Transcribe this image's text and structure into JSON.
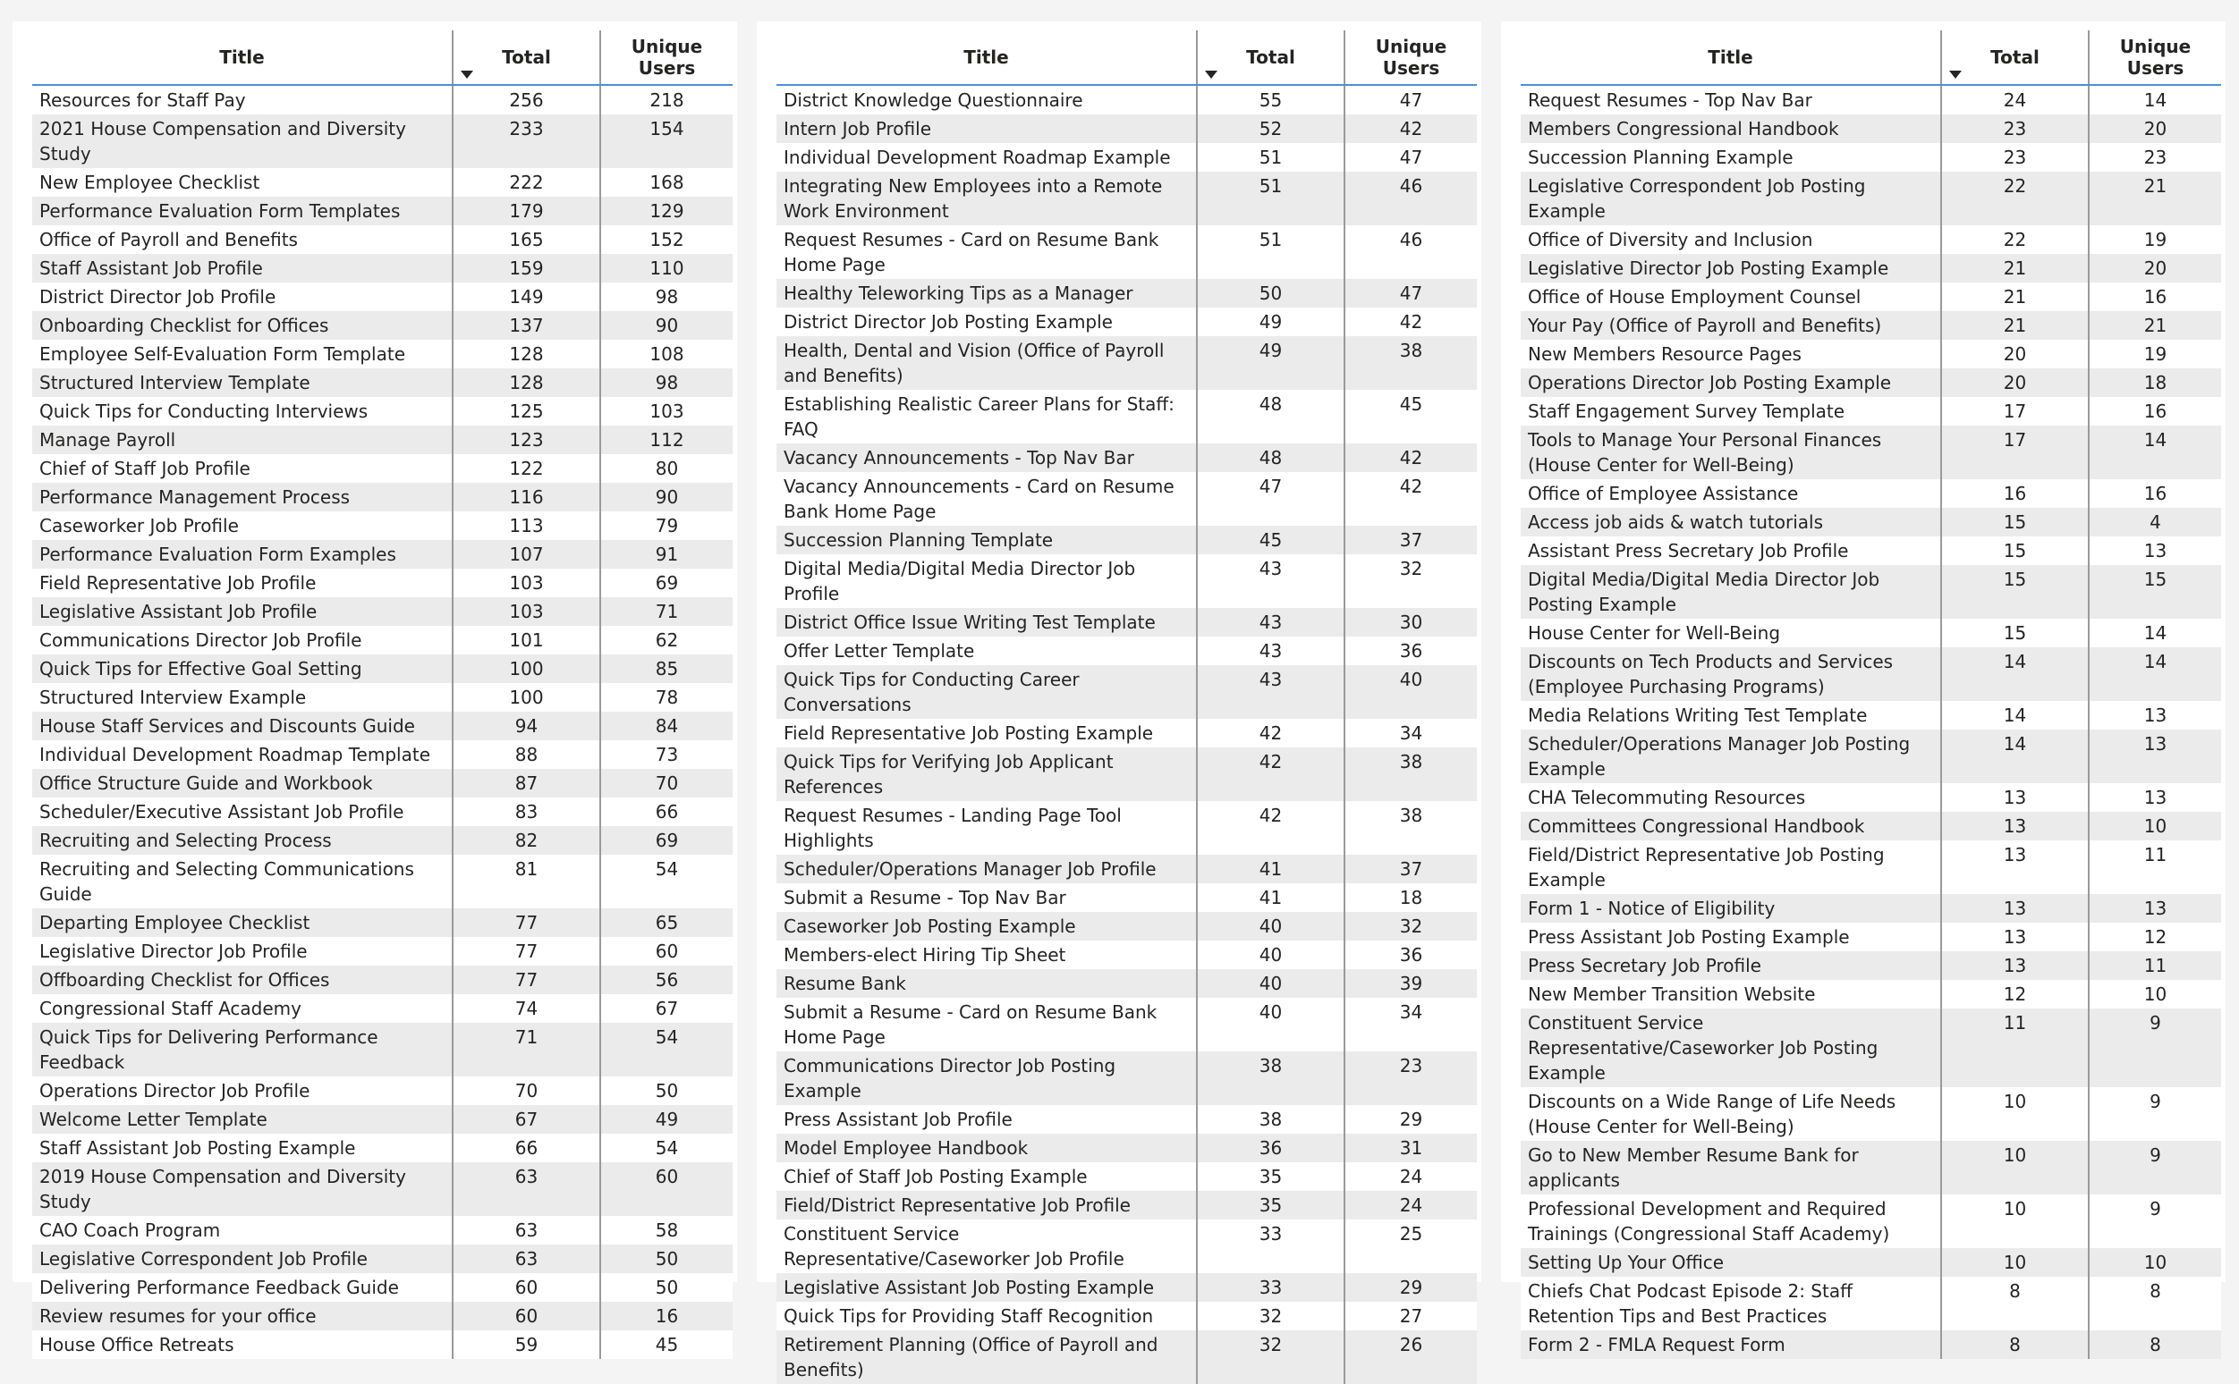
{
  "columns": {
    "title": "Title",
    "total": "Total",
    "unique_users": "Unique Users"
  },
  "tables": [
    {
      "rows": [
        [
          "Resources for Staff Pay",
          "256",
          "218"
        ],
        [
          "2021 House Compensation and Diversity Study",
          "233",
          "154"
        ],
        [
          "New Employee Checklist",
          "222",
          "168"
        ],
        [
          "Performance Evaluation Form Templates",
          "179",
          "129"
        ],
        [
          "Office of Payroll and Benefits",
          "165",
          "152"
        ],
        [
          "Staff Assistant Job Profile",
          "159",
          "110"
        ],
        [
          "District Director Job Profile",
          "149",
          "98"
        ],
        [
          "Onboarding Checklist for Offices",
          "137",
          "90"
        ],
        [
          "Employee Self-Evaluation Form Template",
          "128",
          "108"
        ],
        [
          "Structured Interview Template",
          "128",
          "98"
        ],
        [
          "Quick Tips for Conducting Interviews",
          "125",
          "103"
        ],
        [
          "Manage Payroll",
          "123",
          "112"
        ],
        [
          "Chief of Staff Job Profile",
          "122",
          "80"
        ],
        [
          "Performance Management Process",
          "116",
          "90"
        ],
        [
          "Caseworker Job Profile",
          "113",
          "79"
        ],
        [
          "Performance Evaluation Form Examples",
          "107",
          "91"
        ],
        [
          "Field Representative Job Profile",
          "103",
          "69"
        ],
        [
          "Legislative Assistant Job Profile",
          "103",
          "71"
        ],
        [
          "Communications Director Job Profile",
          "101",
          "62"
        ],
        [
          "Quick Tips for Effective Goal Setting",
          "100",
          "85"
        ],
        [
          "Structured Interview Example",
          "100",
          "78"
        ],
        [
          "House Staff Services and Discounts Guide",
          "94",
          "84"
        ],
        [
          "Individual Development Roadmap Template",
          "88",
          "73"
        ],
        [
          "Office Structure Guide and Workbook",
          "87",
          "70"
        ],
        [
          "Scheduler/Executive Assistant Job Profile",
          "83",
          "66"
        ],
        [
          "Recruiting and Selecting Process",
          "82",
          "69"
        ],
        [
          "Recruiting and Selecting Communications Guide",
          "81",
          "54"
        ],
        [
          "Departing Employee Checklist",
          "77",
          "65"
        ],
        [
          "Legislative Director Job Profile",
          "77",
          "60"
        ],
        [
          "Offboarding Checklist for Offices",
          "77",
          "56"
        ],
        [
          "Congressional Staff Academy",
          "74",
          "67"
        ],
        [
          "Quick Tips for Delivering Performance Feedback",
          "71",
          "54"
        ],
        [
          "Operations Director Job Profile",
          "70",
          "50"
        ],
        [
          "Welcome Letter Template",
          "67",
          "49"
        ],
        [
          "Staff Assistant Job Posting Example",
          "66",
          "54"
        ],
        [
          "2019 House Compensation and Diversity Study",
          "63",
          "60"
        ],
        [
          "CAO Coach Program",
          "63",
          "58"
        ],
        [
          "Legislative Correspondent Job Profile",
          "63",
          "50"
        ],
        [
          "Delivering Performance Feedback Guide",
          "60",
          "50"
        ],
        [
          "Review resumes for your office",
          "60",
          "16"
        ],
        [
          "House Office Retreats",
          "59",
          "45"
        ]
      ]
    },
    {
      "rows": [
        [
          "District Knowledge Questionnaire",
          "55",
          "47"
        ],
        [
          "Intern Job Profile",
          "52",
          "42"
        ],
        [
          "Individual Development Roadmap Example",
          "51",
          "47"
        ],
        [
          "Integrating New Employees into a Remote Work Environment",
          "51",
          "46"
        ],
        [
          "Request Resumes - Card on Resume Bank Home Page",
          "51",
          "46"
        ],
        [
          "Healthy Teleworking Tips as a Manager",
          "50",
          "47"
        ],
        [
          "District Director Job Posting Example",
          "49",
          "42"
        ],
        [
          "Health, Dental and Vision (Office of Payroll and Benefits)",
          "49",
          "38"
        ],
        [
          "Establishing Realistic Career Plans for Staff: FAQ",
          "48",
          "45"
        ],
        [
          "Vacancy Announcements - Top Nav Bar",
          "48",
          "42"
        ],
        [
          "Vacancy Announcements - Card on Resume Bank Home Page",
          "47",
          "42"
        ],
        [
          "Succession Planning Template",
          "45",
          "37"
        ],
        [
          "Digital Media/Digital Media Director Job Profile",
          "43",
          "32"
        ],
        [
          "District Office Issue Writing Test Template",
          "43",
          "30"
        ],
        [
          "Offer Letter Template",
          "43",
          "36"
        ],
        [
          "Quick Tips for Conducting Career Conversations",
          "43",
          "40"
        ],
        [
          "Field Representative Job Posting Example",
          "42",
          "34"
        ],
        [
          "Quick Tips for Verifying Job Applicant References",
          "42",
          "38"
        ],
        [
          "Request Resumes - Landing Page Tool Highlights",
          "42",
          "38"
        ],
        [
          "Scheduler/Operations Manager Job Profile",
          "41",
          "37"
        ],
        [
          "Submit a Resume - Top Nav Bar",
          "41",
          "18"
        ],
        [
          "Caseworker Job Posting Example",
          "40",
          "32"
        ],
        [
          "Members-elect Hiring Tip Sheet",
          "40",
          "36"
        ],
        [
          "Resume Bank",
          "40",
          "39"
        ],
        [
          "Submit a Resume - Card on Resume Bank Home Page",
          "40",
          "34"
        ],
        [
          "Communications Director Job Posting Example",
          "38",
          "23"
        ],
        [
          "Press Assistant Job Profile",
          "38",
          "29"
        ],
        [
          "Model Employee Handbook",
          "36",
          "31"
        ],
        [
          "Chief of Staff Job Posting Example",
          "35",
          "24"
        ],
        [
          "Field/District Representative Job Profile",
          "35",
          "24"
        ],
        [
          "Constituent Service Representative/Caseworker Job Profile",
          "33",
          "25"
        ],
        [
          "Legislative Assistant Job Posting Example",
          "33",
          "29"
        ],
        [
          "Quick Tips for Providing Staff Recognition",
          "32",
          "27"
        ],
        [
          "Retirement Planning (Office of Payroll and Benefits)",
          "32",
          "26"
        ]
      ]
    },
    {
      "rows": [
        [
          "Request Resumes - Top Nav Bar",
          "24",
          "14"
        ],
        [
          "Members Congressional Handbook",
          "23",
          "20"
        ],
        [
          "Succession Planning Example",
          "23",
          "23"
        ],
        [
          "Legislative Correspondent Job Posting Example",
          "22",
          "21"
        ],
        [
          "Office of Diversity and Inclusion",
          "22",
          "19"
        ],
        [
          "Legislative Director Job Posting Example",
          "21",
          "20"
        ],
        [
          "Office of House Employment Counsel",
          "21",
          "16"
        ],
        [
          "Your Pay (Office of Payroll and Benefits)",
          "21",
          "21"
        ],
        [
          "New Members Resource Pages",
          "20",
          "19"
        ],
        [
          "Operations Director Job Posting Example",
          "20",
          "18"
        ],
        [
          "Staff Engagement Survey Template",
          "17",
          "16"
        ],
        [
          "Tools to Manage Your Personal Finances (House Center for Well-Being)",
          "17",
          "14"
        ],
        [
          "Office of Employee Assistance",
          "16",
          "16"
        ],
        [
          "Access job aids & watch tutorials",
          "15",
          "4"
        ],
        [
          "Assistant Press Secretary Job Profile",
          "15",
          "13"
        ],
        [
          "Digital Media/Digital Media Director Job Posting Example",
          "15",
          "15"
        ],
        [
          "House Center for Well-Being",
          "15",
          "14"
        ],
        [
          "Discounts on Tech Products and Services (Employee Purchasing Programs)",
          "14",
          "14"
        ],
        [
          "Media Relations Writing Test Template",
          "14",
          "13"
        ],
        [
          "Scheduler/Operations Manager Job Posting Example",
          "14",
          "13"
        ],
        [
          "CHA Telecommuting Resources",
          "13",
          "13"
        ],
        [
          "Committees Congressional Handbook",
          "13",
          "10"
        ],
        [
          "Field/District Representative Job Posting Example",
          "13",
          "11"
        ],
        [
          "Form 1 - Notice of Eligibility",
          "13",
          "13"
        ],
        [
          "Press Assistant Job Posting Example",
          "13",
          "12"
        ],
        [
          "Press Secretary Job Profile",
          "13",
          "11"
        ],
        [
          "New Member Transition Website",
          "12",
          "10"
        ],
        [
          "Constituent Service Representative/Caseworker Job Posting Example",
          "11",
          "9"
        ],
        [
          "Discounts on a Wide Range of Life Needs (House Center for Well-Being)",
          "10",
          "9"
        ],
        [
          "Go to New Member Resume Bank for applicants",
          "10",
          "9"
        ],
        [
          "Professional Development and Required Trainings (Congressional Staff Academy)",
          "10",
          "9"
        ],
        [
          "Setting Up Your Office",
          "10",
          "10"
        ],
        [
          "Chiefs Chat Podcast Episode 2: Staff Retention Tips and Best Practices",
          "8",
          "8"
        ],
        [
          "Form 2 - FMLA Request Form",
          "8",
          "8"
        ]
      ]
    }
  ]
}
